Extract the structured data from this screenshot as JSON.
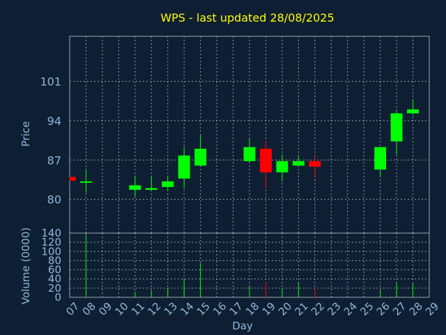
{
  "chart_data": {
    "type": "candlestick",
    "title": "WPS - last updated 28/08/2025",
    "xlabel": "Day",
    "price_panel": {
      "ylabel": "Price",
      "ylim": [
        74,
        109
      ],
      "yticks": [
        80,
        87,
        94,
        101
      ]
    },
    "volume_panel": {
      "ylabel": "Volume (0000)",
      "ylim": [
        0,
        140
      ],
      "yticks": [
        0,
        20,
        40,
        60,
        80,
        100,
        120,
        140
      ]
    },
    "x_ticks": [
      "07",
      "08",
      "09",
      "10",
      "11",
      "12",
      "13",
      "14",
      "15",
      "16",
      "17",
      "18",
      "19",
      "20",
      "21",
      "22",
      "23",
      "24",
      "25",
      "26",
      "27",
      "28",
      "29"
    ],
    "candles": [
      {
        "day": 7,
        "open": 84.0,
        "close": 83.3,
        "high": 84.0,
        "low": 83.3,
        "volume": 0
      },
      {
        "day": 8,
        "open": 83.0,
        "close": 83.2,
        "high": 85.2,
        "low": 81.2,
        "volume": 137
      },
      {
        "day": 11,
        "open": 81.7,
        "close": 82.5,
        "high": 84.2,
        "low": 80.5,
        "volume": 12
      },
      {
        "day": 12,
        "open": 81.7,
        "close": 82.0,
        "high": 84.0,
        "low": 81.5,
        "volume": 15
      },
      {
        "day": 13,
        "open": 82.2,
        "close": 83.2,
        "high": 84.0,
        "low": 81.5,
        "volume": 20
      },
      {
        "day": 14,
        "open": 83.7,
        "close": 87.8,
        "high": 89.3,
        "low": 82.0,
        "volume": 40
      },
      {
        "day": 15,
        "open": 86.0,
        "close": 89.0,
        "high": 91.5,
        "low": 86.0,
        "volume": 75
      },
      {
        "day": 18,
        "open": 86.8,
        "close": 89.3,
        "high": 90.8,
        "low": 86.5,
        "volume": 25
      },
      {
        "day": 19,
        "open": 89.0,
        "close": 84.8,
        "high": 90.3,
        "low": 82.0,
        "volume": 33
      },
      {
        "day": 20,
        "open": 84.8,
        "close": 86.8,
        "high": 88.0,
        "low": 83.2,
        "volume": 20
      },
      {
        "day": 21,
        "open": 86.0,
        "close": 86.8,
        "high": 87.9,
        "low": 86.0,
        "volume": 33
      },
      {
        "day": 22,
        "open": 86.8,
        "close": 85.8,
        "high": 87.8,
        "low": 83.8,
        "volume": 18
      },
      {
        "day": 26,
        "open": 85.3,
        "close": 89.3,
        "high": 89.3,
        "low": 84.0,
        "volume": 15
      },
      {
        "day": 27,
        "open": 90.3,
        "close": 95.3,
        "high": 95.8,
        "low": 88.0,
        "volume": 32
      },
      {
        "day": 28,
        "open": 95.3,
        "close": 96.0,
        "high": 97.7,
        "low": 95.0,
        "volume": 30
      }
    ],
    "colors": {
      "up": "#00ff00",
      "down": "#ff0000",
      "background": "#0f1f33",
      "title": "#ffff00",
      "axis": "#8fb6dc"
    },
    "grid": true
  }
}
